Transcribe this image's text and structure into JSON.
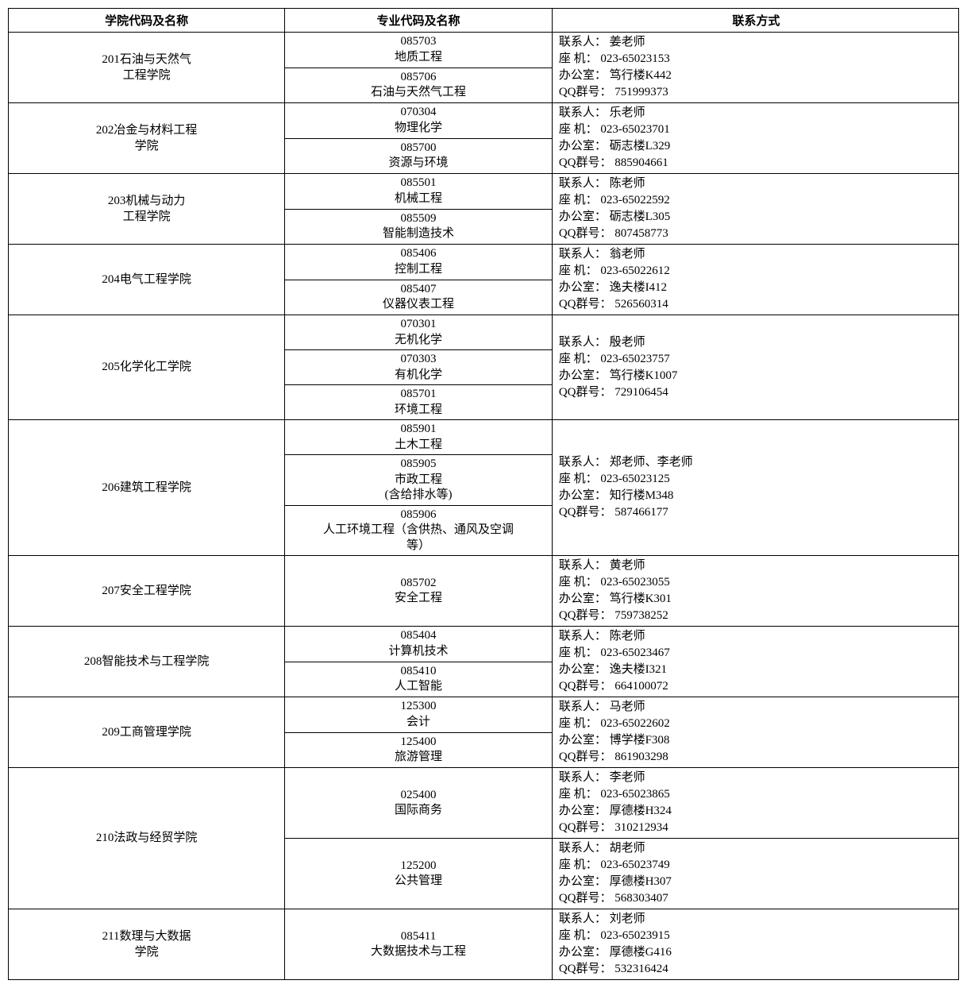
{
  "headers": {
    "school": "学院代码及名称",
    "major": "专业代码及名称",
    "contact": "联系方式"
  },
  "labels": {
    "person": "联系人：",
    "phone": "座  机：",
    "office": "办公室：",
    "qq": "QQ群号：",
    "space": " "
  },
  "schools": [
    {
      "name_lines": [
        "201石油与天然气",
        "工程学院"
      ],
      "majors": [
        {
          "code": "085703",
          "name": "地质工程"
        },
        {
          "code": "085706",
          "name": "石油与天然气工程"
        }
      ],
      "contacts": [
        {
          "person": "姜老师",
          "phone": "023-65023153",
          "office": "笃行楼K442",
          "qq": "751999373"
        }
      ]
    },
    {
      "name_lines": [
        "202冶金与材料工程",
        "学院"
      ],
      "majors": [
        {
          "code": "070304",
          "name": "物理化学"
        },
        {
          "code": "085700",
          "name": "资源与环境"
        }
      ],
      "contacts": [
        {
          "person": "乐老师",
          "phone": "023-65023701",
          "office": "砺志楼L329",
          "qq": "885904661"
        }
      ]
    },
    {
      "name_lines": [
        "203机械与动力",
        "工程学院"
      ],
      "majors": [
        {
          "code": "085501",
          "name": "机械工程"
        },
        {
          "code": "085509",
          "name": "智能制造技术"
        }
      ],
      "contacts": [
        {
          "person": "陈老师",
          "phone": "023-65022592",
          "office": "砺志楼L305",
          "qq": "807458773"
        }
      ]
    },
    {
      "name_lines": [
        "204电气工程学院"
      ],
      "majors": [
        {
          "code": "085406",
          "name": "控制工程"
        },
        {
          "code": "085407",
          "name": "仪器仪表工程"
        }
      ],
      "contacts": [
        {
          "person": "翁老师",
          "phone": "023-65022612",
          "office": "逸夫楼I412",
          "qq": "526560314"
        }
      ]
    },
    {
      "name_lines": [
        "205化学化工学院"
      ],
      "majors": [
        {
          "code": "070301",
          "name": "无机化学"
        },
        {
          "code": "070303",
          "name": "有机化学"
        },
        {
          "code": "085701",
          "name": "环境工程"
        }
      ],
      "contacts": [
        {
          "person": "殷老师",
          "phone": "023-65023757",
          "office": "笃行楼K1007",
          "qq": "729106454"
        }
      ]
    },
    {
      "name_lines": [
        "206建筑工程学院"
      ],
      "majors": [
        {
          "code": "085901",
          "name": "土木工程"
        },
        {
          "code": "085905",
          "name_lines": [
            "市政工程",
            "(含给排水等)"
          ]
        },
        {
          "code": "085906",
          "name_lines": [
            "人工环境工程（含供热、通风及空调",
            "等）"
          ]
        }
      ],
      "contacts": [
        {
          "person": "郑老师、李老师",
          "phone": "023-65023125",
          "office": "知行楼M348",
          "qq": "587466177"
        }
      ]
    },
    {
      "name_lines": [
        "207安全工程学院"
      ],
      "majors": [
        {
          "code": "085702",
          "name": "安全工程"
        }
      ],
      "contacts": [
        {
          "person": "黄老师",
          "phone": "023-65023055",
          "office": "笃行楼K301",
          "qq": "759738252"
        }
      ]
    },
    {
      "name_lines": [
        "208智能技术与工程学院"
      ],
      "majors": [
        {
          "code": "085404",
          "name": "计算机技术"
        },
        {
          "code": "085410",
          "name": "人工智能"
        }
      ],
      "contacts": [
        {
          "person": "陈老师",
          "phone": "023-65023467",
          "office": "逸夫楼I321",
          "qq": "664100072"
        }
      ]
    },
    {
      "name_lines": [
        "209工商管理学院"
      ],
      "majors": [
        {
          "code": "125300",
          "name": "会计"
        },
        {
          "code": "125400",
          "name": "旅游管理"
        }
      ],
      "contacts": [
        {
          "person": "马老师",
          "phone": "023-65022602",
          "office": "博学楼F308",
          "qq": "861903298"
        }
      ]
    },
    {
      "name_lines": [
        "210法政与经贸学院"
      ],
      "majors": [
        {
          "code": "025400",
          "name": "国际商务"
        },
        {
          "code": "125200",
          "name": "公共管理"
        }
      ],
      "contacts": [
        {
          "person": "李老师",
          "phone": "023-65023865",
          "office": "厚德楼H324",
          "qq": "310212934"
        },
        {
          "person": "胡老师",
          "phone": "023-65023749",
          "office": "厚德楼H307",
          "qq": "568303407"
        }
      ]
    },
    {
      "name_lines": [
        "211数理与大数据",
        "学院"
      ],
      "majors": [
        {
          "code": "085411",
          "name": "大数据技术与工程"
        }
      ],
      "contacts": [
        {
          "person": "刘老师",
          "phone": "023-65023915",
          "office": "厚德楼G416",
          "qq": "532316424"
        }
      ]
    }
  ]
}
